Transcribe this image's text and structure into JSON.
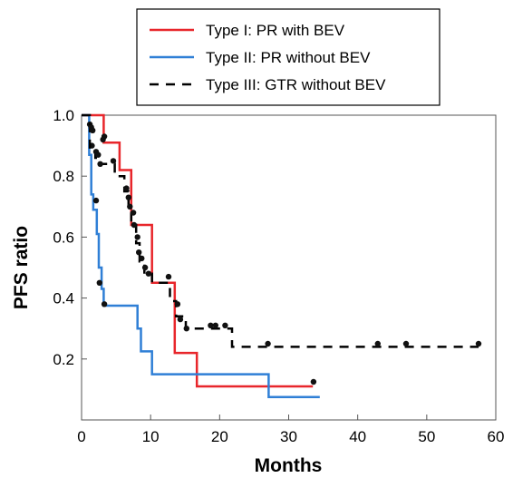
{
  "chart_data": {
    "type": "line",
    "xlabel": "Months",
    "ylabel": "PFS ratio",
    "xlim": [
      0,
      60
    ],
    "ylim": [
      0,
      1.0
    ],
    "x_ticks": [
      {
        "value": 0,
        "label": "0"
      },
      {
        "value": 10,
        "label": "10"
      },
      {
        "value": 20,
        "label": "20"
      },
      {
        "value": 30,
        "label": "30"
      },
      {
        "value": 40,
        "label": "40"
      },
      {
        "value": 50,
        "label": "50"
      },
      {
        "value": 60,
        "label": "60"
      }
    ],
    "y_ticks": [
      {
        "value": 0.2,
        "label": "0.2"
      },
      {
        "value": 0.4,
        "label": "0.4"
      },
      {
        "value": 0.6,
        "label": "0.6"
      },
      {
        "value": 0.8,
        "label": "0.8"
      },
      {
        "value": 1.0,
        "label": "1.0"
      }
    ],
    "grid": false,
    "legend_position": "top-center",
    "series": [
      {
        "name": "Type I: PR with BEV",
        "color": "#e8262b",
        "dash": "solid",
        "steps": [
          [
            0,
            1.0
          ],
          [
            3.2,
            1.0
          ],
          [
            3.2,
            0.91
          ],
          [
            5.5,
            0.91
          ],
          [
            5.5,
            0.82
          ],
          [
            7.2,
            0.82
          ],
          [
            7.2,
            0.64
          ],
          [
            10.2,
            0.64
          ],
          [
            10.2,
            0.45
          ],
          [
            13.5,
            0.45
          ],
          [
            13.5,
            0.22
          ],
          [
            16.7,
            0.22
          ],
          [
            16.7,
            0.11
          ],
          [
            33.5,
            0.11
          ]
        ],
        "censored": [
          [
            33.6,
            0.125
          ]
        ]
      },
      {
        "name": "Type II: PR without BEV",
        "color": "#2f7fd6",
        "dash": "solid",
        "steps": [
          [
            0,
            1.0
          ],
          [
            1.1,
            1.0
          ],
          [
            1.1,
            0.87
          ],
          [
            1.4,
            0.87
          ],
          [
            1.4,
            0.74
          ],
          [
            1.7,
            0.74
          ],
          [
            1.7,
            0.69
          ],
          [
            2.2,
            0.69
          ],
          [
            2.2,
            0.61
          ],
          [
            2.5,
            0.61
          ],
          [
            2.5,
            0.5
          ],
          [
            2.9,
            0.5
          ],
          [
            2.9,
            0.43
          ],
          [
            3.2,
            0.43
          ],
          [
            3.2,
            0.375
          ],
          [
            8.1,
            0.375
          ],
          [
            8.1,
            0.3
          ],
          [
            8.6,
            0.3
          ],
          [
            8.6,
            0.225
          ],
          [
            10.2,
            0.225
          ],
          [
            10.2,
            0.15
          ],
          [
            27.1,
            0.15
          ],
          [
            27.1,
            0.075
          ],
          [
            34.5,
            0.075
          ]
        ],
        "censored": [
          [
            1.2,
            0.97
          ],
          [
            1.5,
            0.9
          ],
          [
            2.1,
            0.72
          ],
          [
            2.6,
            0.45
          ],
          [
            3.3,
            0.38
          ]
        ]
      },
      {
        "name": "Type III: GTR without BEV",
        "color": "#000000",
        "dash": "dashed",
        "steps": [
          [
            0,
            1.0
          ],
          [
            1.2,
            1.0
          ],
          [
            1.2,
            0.89
          ],
          [
            2.0,
            0.89
          ],
          [
            2.0,
            0.86
          ],
          [
            2.7,
            0.86
          ],
          [
            2.7,
            0.84
          ],
          [
            4.8,
            0.84
          ],
          [
            4.8,
            0.8
          ],
          [
            6.2,
            0.8
          ],
          [
            6.2,
            0.75
          ],
          [
            6.8,
            0.75
          ],
          [
            6.8,
            0.7
          ],
          [
            7.2,
            0.7
          ],
          [
            7.2,
            0.64
          ],
          [
            7.9,
            0.64
          ],
          [
            7.9,
            0.58
          ],
          [
            8.4,
            0.58
          ],
          [
            8.4,
            0.52
          ],
          [
            9.1,
            0.52
          ],
          [
            9.1,
            0.48
          ],
          [
            10.2,
            0.48
          ],
          [
            10.2,
            0.45
          ],
          [
            12.8,
            0.45
          ],
          [
            12.8,
            0.39
          ],
          [
            13.7,
            0.39
          ],
          [
            13.7,
            0.34
          ],
          [
            15.1,
            0.34
          ],
          [
            15.1,
            0.3
          ],
          [
            21.8,
            0.3
          ],
          [
            21.8,
            0.24
          ],
          [
            57.5,
            0.24
          ]
        ],
        "censored": [
          [
            1.4,
            0.96
          ],
          [
            1.6,
            0.95
          ],
          [
            2.1,
            0.88
          ],
          [
            2.4,
            0.87
          ],
          [
            2.7,
            0.84
          ],
          [
            3.1,
            0.92
          ],
          [
            3.3,
            0.93
          ],
          [
            4.6,
            0.85
          ],
          [
            6.5,
            0.76
          ],
          [
            6.8,
            0.73
          ],
          [
            7.0,
            0.7
          ],
          [
            7.5,
            0.68
          ],
          [
            7.6,
            0.64
          ],
          [
            8.1,
            0.6
          ],
          [
            8.3,
            0.55
          ],
          [
            8.7,
            0.53
          ],
          [
            9.2,
            0.5
          ],
          [
            9.7,
            0.48
          ],
          [
            12.6,
            0.47
          ],
          [
            13.9,
            0.38
          ],
          [
            14.3,
            0.33
          ],
          [
            15.2,
            0.3
          ],
          [
            18.7,
            0.31
          ],
          [
            19.4,
            0.31
          ],
          [
            20.8,
            0.31
          ],
          [
            27.0,
            0.25
          ],
          [
            42.9,
            0.25
          ],
          [
            47.0,
            0.25
          ],
          [
            57.5,
            0.25
          ]
        ]
      }
    ]
  }
}
